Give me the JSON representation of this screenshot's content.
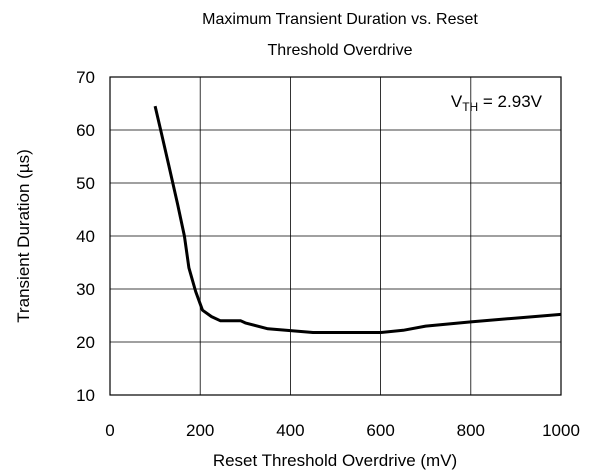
{
  "chart_data": {
    "type": "line",
    "title_lines": [
      "Maximum Transient Duration vs. Reset",
      "Threshold Overdrive"
    ],
    "xlabel": "Reset Threshold Overdrive (mV)",
    "ylabel": "Transient Duration (µs)",
    "xlim": [
      0,
      1000
    ],
    "ylim": [
      10,
      70
    ],
    "xticks": [
      0,
      200,
      400,
      600,
      800,
      1000
    ],
    "yticks": [
      10,
      20,
      30,
      40,
      50,
      60,
      70
    ],
    "grid": true,
    "annotation": {
      "main": "V",
      "sub": "TH",
      "rest": " = 2.93V"
    },
    "series": [
      {
        "color": "#000000",
        "x": [
          100,
          115,
          130,
          150,
          165,
          175,
          190,
          205,
          225,
          245,
          260,
          290,
          300,
          350,
          450,
          600,
          650,
          700,
          800,
          900,
          1000
        ],
        "y": [
          64.5,
          59,
          53.5,
          46,
          40,
          34,
          29.5,
          26,
          24.8,
          24,
          24,
          24,
          23.6,
          22.5,
          21.8,
          21.8,
          22.2,
          23,
          23.8,
          24.5,
          25.2
        ]
      }
    ]
  }
}
